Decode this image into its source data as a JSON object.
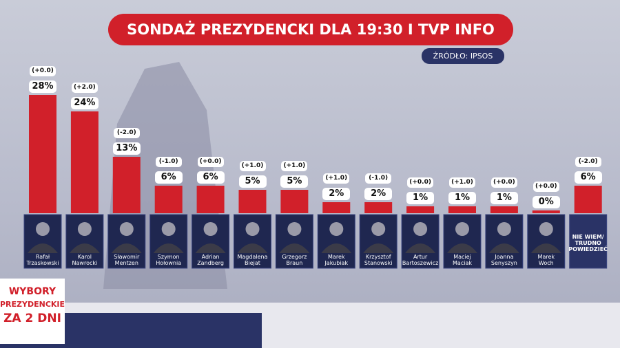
{
  "chart_data": {
    "type": "bar",
    "title": "SONDAŻ PREZYDENCKI DLA 19:30 I TVP INFO",
    "source": "ŹRÓDŁO: IPSOS",
    "categories": [
      "Rafał\nTrzaskowski",
      "Karol\nNawrocki",
      "Sławomir\nMentzen",
      "Szymon\nHołownia",
      "Adrian\nZandberg",
      "Magdalena\nBiejat",
      "Grzegorz\nBraun",
      "Marek\nJakubiak",
      "Krzysztof\nStanowski",
      "Artur\nBartoszewicz",
      "Maciej\nMaciak",
      "Joanna\nSenyszyn",
      "Marek\nWoch",
      "NIE WIEM/\nTRUDNO\nPOWIEDZIEĆ"
    ],
    "values": [
      28,
      24,
      13,
      6,
      6,
      5,
      5,
      2,
      2,
      1,
      1,
      1,
      0,
      6
    ],
    "value_labels": [
      "28%",
      "24%",
      "13%",
      "6%",
      "6%",
      "5%",
      "5%",
      "2%",
      "2%",
      "1%",
      "1%",
      "1%",
      "0%",
      "6%"
    ],
    "change_labels": [
      "(+0.0)",
      "(+2.0)",
      "(-2.0)",
      "(-1.0)",
      "(+0.0)",
      "(+1.0)",
      "(+1.0)",
      "(+1.0)",
      "(-1.0)",
      "(+0.0)",
      "(+1.0)",
      "(+0.0)",
      "(+0.0)",
      "(-2.0)"
    ],
    "color": "#d1202a"
  },
  "badge": {
    "lines": [
      "WYBORY",
      "PREZYDENCKIE",
      "ZA 2 DNI"
    ]
  }
}
